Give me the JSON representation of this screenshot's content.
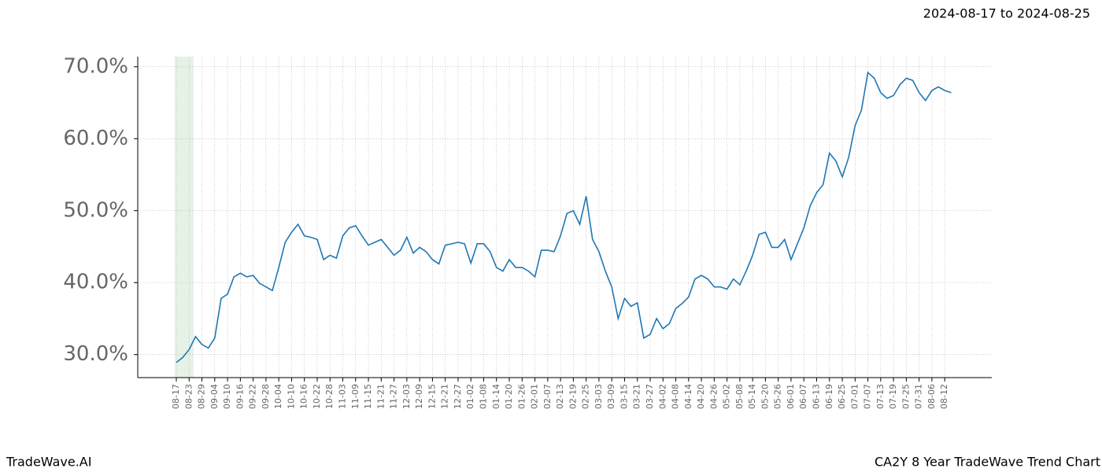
{
  "chart_data": {
    "type": "line",
    "subtitle": "2024-08-17 to 2024-08-25",
    "footer_left": "TradeWave.AI",
    "footer_right": "CA2Y 8 Year TradeWave Trend Chart",
    "categories": [
      "08-17",
      null,
      "08-23",
      null,
      "08-29",
      null,
      "09-04",
      null,
      "09-10",
      null,
      "09-16",
      null,
      "09-22",
      null,
      "09-28",
      null,
      "10-04",
      null,
      "10-10",
      null,
      "10-16",
      null,
      "10-22",
      null,
      "10-28",
      null,
      "11-03",
      null,
      "11-09",
      null,
      "11-15",
      null,
      "11-21",
      null,
      "11-27",
      null,
      "12-03",
      null,
      "12-09",
      null,
      "12-15",
      null,
      "12-21",
      null,
      "12-27",
      null,
      "01-02",
      null,
      "01-08",
      null,
      "01-14",
      null,
      "01-20",
      null,
      "01-26",
      null,
      "02-01",
      null,
      "02-07",
      null,
      "02-13",
      null,
      "02-19",
      null,
      "02-25",
      null,
      "03-03",
      null,
      "03-09",
      null,
      "03-15",
      null,
      "03-21",
      null,
      "03-27",
      null,
      "04-02",
      null,
      "04-08",
      null,
      "04-14",
      null,
      "04-20",
      null,
      "04-26",
      null,
      "05-02",
      null,
      "05-08",
      null,
      "05-14",
      null,
      "05-20",
      null,
      "05-26",
      null,
      "06-01",
      null,
      "06-07",
      null,
      "06-13",
      null,
      "06-19",
      null,
      "06-25",
      null,
      "07-01",
      null,
      "07-07",
      null,
      "07-13",
      null,
      "07-19",
      null,
      "07-25",
      null,
      "07-31",
      null,
      "08-06",
      null,
      "08-12",
      null
    ],
    "series": [
      {
        "color": "#1f77b4",
        "values": [
          28.9,
          29.6,
          30.7,
          32.5,
          31.4,
          30.9,
          32.3,
          37.8,
          38.4,
          40.8,
          41.3,
          40.8,
          41.0,
          39.9,
          39.4,
          38.9,
          42.1,
          45.6,
          47.0,
          48.1,
          46.5,
          46.3,
          46.0,
          43.2,
          43.8,
          43.4,
          46.5,
          47.6,
          47.9,
          46.5,
          45.2,
          45.6,
          46.0,
          44.9,
          43.8,
          44.5,
          46.3,
          44.1,
          44.9,
          44.3,
          43.2,
          42.6,
          45.2,
          45.4,
          45.6,
          45.4,
          42.7,
          45.4,
          45.4,
          44.3,
          42.1,
          41.6,
          43.2,
          42.1,
          42.1,
          41.6,
          40.8,
          44.5,
          44.5,
          44.3,
          46.5,
          49.6,
          50.0,
          48.1,
          52.0,
          46.0,
          44.3,
          41.6,
          39.4,
          35.0,
          37.8,
          36.7,
          37.2,
          32.3,
          32.8,
          35.0,
          33.6,
          34.3,
          36.4,
          37.1,
          38.0,
          40.5,
          41.0,
          40.5,
          39.4,
          39.4,
          39.1,
          40.5,
          39.7,
          41.6,
          43.8,
          46.7,
          47.0,
          44.9,
          44.9,
          46.0,
          43.2,
          45.4,
          47.6,
          50.7,
          52.5,
          53.6,
          58.0,
          56.9,
          54.7,
          57.4,
          61.8,
          64.0,
          69.2,
          68.4,
          66.4,
          65.6,
          66.0,
          67.5,
          68.4,
          68.1,
          66.4,
          65.3,
          66.7,
          67.2,
          66.7,
          66.4
        ]
      }
    ],
    "ylim": [
      26.8,
      71.4
    ],
    "yticks": [
      {
        "value": 30,
        "label": "30.0%"
      },
      {
        "value": 40,
        "label": "40.0%"
      },
      {
        "value": 50,
        "label": "50.0%"
      },
      {
        "value": 60,
        "label": "60.0%"
      },
      {
        "value": 70,
        "label": "70.0%"
      }
    ],
    "grid": true
  }
}
